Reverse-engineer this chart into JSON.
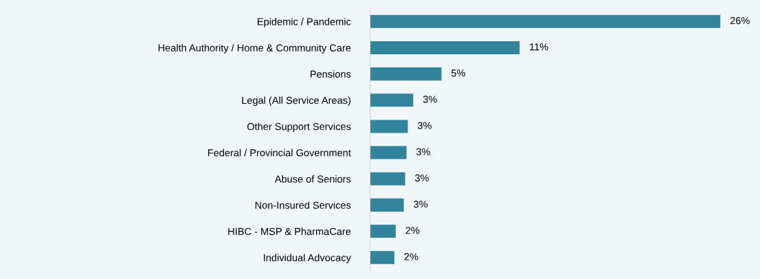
{
  "chart_data": {
    "type": "bar",
    "orientation": "horizontal",
    "categories": [
      "Epidemic / Pandemic",
      "Health Authority / Home & Community Care",
      "Pensions",
      "Legal (All Service Areas)",
      "Other Support Services",
      "Federal / Provincial Government",
      "Abuse of Seniors",
      "Non-Insured Services",
      "HIBC - MSP & PharmaCare",
      "Individual Advocacy"
    ],
    "values": [
      26,
      11.1,
      5.3,
      3.2,
      2.8,
      2.7,
      2.6,
      2.5,
      1.9,
      1.8
    ],
    "value_labels": [
      "26%",
      "11%",
      "5%",
      "3%",
      "3%",
      "3%",
      "3%",
      "3%",
      "2%",
      "2%"
    ],
    "color": "#31849b",
    "grid": false,
    "legend": false
  }
}
